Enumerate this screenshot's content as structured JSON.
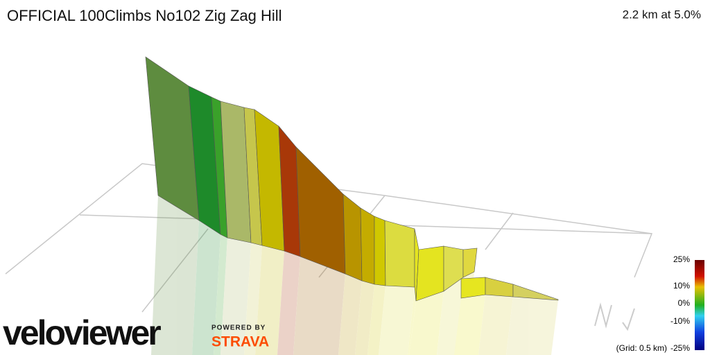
{
  "header": {
    "title": "OFFICIAL 100Climbs No102 Zig Zag Hill",
    "summary": "2.2 km at 5.0%"
  },
  "legend": {
    "ticks": [
      "25%",
      "10%",
      "0%",
      "-10%",
      "-25%"
    ],
    "grid_note": "(Grid: 0.5 km)"
  },
  "branding": {
    "logo": "veloviewer",
    "powered_by": "POWERED BY",
    "partner": "STRAVA"
  }
}
